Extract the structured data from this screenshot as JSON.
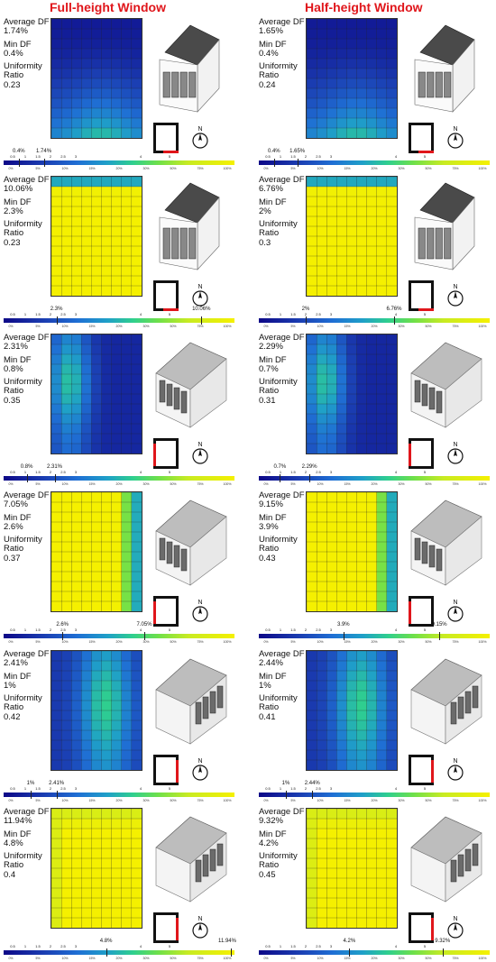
{
  "titles": {
    "full": "Full-height Window",
    "half": "Half-height Window"
  },
  "labels": {
    "average": "Average DF",
    "min": "Min DF",
    "uniformity_line1": "Uniformity",
    "uniformity_line2": "Ratio"
  },
  "legend_ticks": [
    "0.5",
    "1",
    "1.5",
    "2",
    "2.5",
    "3",
    "4",
    "5"
  ],
  "legend_sub_ticks": [
    "0%",
    "5%",
    "10%",
    "15%",
    "20%",
    "30%",
    "50%",
    "75%",
    "100%"
  ],
  "colors": {
    "title": "#e0161b",
    "window_mark": "#e0161b",
    "scale": [
      "#0d0887",
      "#1b3fb3",
      "#1f6fd4",
      "#1fa0c8",
      "#2fcf8e",
      "#6ee04a",
      "#c8eb22",
      "#f5f000"
    ]
  },
  "chart_data": [
    {
      "type": "heatmap",
      "column": "Full-height Window",
      "row": 1,
      "average_df": "1.74%",
      "min_df": "0.4%",
      "uniformity_ratio": "0.23",
      "window_side": "bottom",
      "orientation": "front",
      "mean_level": 0.22,
      "pattern": "bottom"
    },
    {
      "type": "heatmap",
      "column": "Half-height Window",
      "row": 1,
      "average_df": "1.65%",
      "min_df": "0.4%",
      "uniformity_ratio": "0.24",
      "window_side": "bottom",
      "orientation": "front",
      "mean_level": 0.2,
      "pattern": "bottom"
    },
    {
      "type": "heatmap",
      "column": "Full-height Window",
      "row": 2,
      "average_df": "10.06%",
      "min_df": "2.3%",
      "uniformity_ratio": "0.23",
      "window_side": "bottom",
      "orientation": "front",
      "mean_level": 0.9,
      "pattern": "bottom-bright"
    },
    {
      "type": "heatmap",
      "column": "Half-height Window",
      "row": 2,
      "average_df": "6.76%",
      "min_df": "2%",
      "uniformity_ratio": "0.3",
      "window_side": "bottom",
      "orientation": "front",
      "mean_level": 0.8,
      "pattern": "bottom-bright"
    },
    {
      "type": "heatmap",
      "column": "Full-height Window",
      "row": 3,
      "average_df": "2.31%",
      "min_df": "0.8%",
      "uniformity_ratio": "0.35",
      "window_side": "left",
      "orientation": "side",
      "mean_level": 0.3,
      "pattern": "left"
    },
    {
      "type": "heatmap",
      "column": "Half-height Window",
      "row": 3,
      "average_df": "2.29%",
      "min_df": "0.7%",
      "uniformity_ratio": "0.31",
      "window_side": "left",
      "orientation": "side",
      "mean_level": 0.28,
      "pattern": "left"
    },
    {
      "type": "heatmap",
      "column": "Full-height Window",
      "row": 4,
      "average_df": "7.05%",
      "min_df": "2.6%",
      "uniformity_ratio": "0.37",
      "window_side": "left",
      "orientation": "side",
      "mean_level": 0.85,
      "pattern": "left-bright"
    },
    {
      "type": "heatmap",
      "column": "Half-height Window",
      "row": 4,
      "average_df": "9.15%",
      "min_df": "3.9%",
      "uniformity_ratio": "0.43",
      "window_side": "left",
      "orientation": "side",
      "mean_level": 0.9,
      "pattern": "left-bright"
    },
    {
      "type": "heatmap",
      "column": "Full-height Window",
      "row": 5,
      "average_df": "2.41%",
      "min_df": "1%",
      "uniformity_ratio": "0.42",
      "window_side": "right",
      "orientation": "side",
      "mean_level": 0.32,
      "pattern": "right"
    },
    {
      "type": "heatmap",
      "column": "Half-height Window",
      "row": 5,
      "average_df": "2.44%",
      "min_df": "1%",
      "uniformity_ratio": "0.41",
      "window_side": "right",
      "orientation": "side",
      "mean_level": 0.32,
      "pattern": "right"
    },
    {
      "type": "heatmap",
      "column": "Full-height Window",
      "row": 6,
      "average_df": "11.94%",
      "min_df": "4.8%",
      "uniformity_ratio": "0.4",
      "window_side": "right",
      "orientation": "side",
      "mean_level": 0.97,
      "pattern": "full-bright"
    },
    {
      "type": "heatmap",
      "column": "Half-height Window",
      "row": 6,
      "average_df": "9.32%",
      "min_df": "4.2%",
      "uniformity_ratio": "0.45",
      "window_side": "right",
      "orientation": "side",
      "mean_level": 0.93,
      "pattern": "full-bright"
    }
  ]
}
